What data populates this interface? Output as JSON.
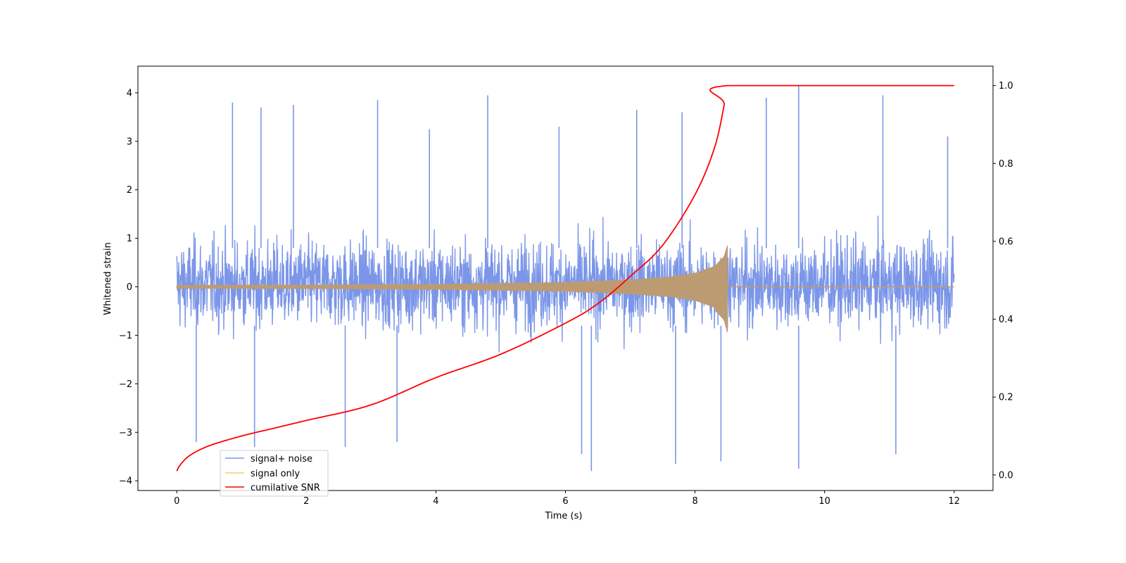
{
  "chart_data": {
    "type": "line",
    "xlabel": "Time (s)",
    "ylabel": "Whitened strain",
    "xlim": [
      -0.6,
      12.6
    ],
    "ylim": [
      -4.2,
      4.55
    ],
    "ylim_right": [
      -0.04,
      1.05
    ],
    "x_ticks": [
      0,
      2,
      4,
      6,
      8,
      10,
      12
    ],
    "y_ticks": [
      -4,
      -3,
      -2,
      -1,
      0,
      1,
      2,
      3,
      4
    ],
    "y_ticks_right": [
      0.0,
      0.2,
      0.4,
      0.6,
      0.8,
      1.0
    ],
    "grid": false,
    "legend_position": "lower-left",
    "series": [
      {
        "name": "signal+ noise",
        "color": "#7b96e8",
        "axis": "left",
        "x_range": [
          0,
          12
        ],
        "envelope_min": -3.8,
        "envelope_max": 4.15,
        "typical_range": [
          -2.0,
          2.2
        ],
        "spikes": [
          {
            "x": 0.86,
            "y": 3.8
          },
          {
            "x": 1.3,
            "y": 3.7
          },
          {
            "x": 1.8,
            "y": 3.75
          },
          {
            "x": 3.1,
            "y": 3.85
          },
          {
            "x": 3.9,
            "y": 3.25
          },
          {
            "x": 4.8,
            "y": 3.95
          },
          {
            "x": 5.9,
            "y": 3.3
          },
          {
            "x": 7.1,
            "y": 3.65
          },
          {
            "x": 7.8,
            "y": 3.6
          },
          {
            "x": 9.1,
            "y": 3.9
          },
          {
            "x": 9.6,
            "y": 4.15
          },
          {
            "x": 10.9,
            "y": 3.95
          },
          {
            "x": 11.9,
            "y": 3.1
          },
          {
            "x": 0.3,
            "y": -3.2
          },
          {
            "x": 1.2,
            "y": -3.3
          },
          {
            "x": 2.6,
            "y": -3.3
          },
          {
            "x": 3.4,
            "y": -3.2
          },
          {
            "x": 6.4,
            "y": -3.8
          },
          {
            "x": 6.25,
            "y": -3.45
          },
          {
            "x": 7.7,
            "y": -3.65
          },
          {
            "x": 8.4,
            "y": -3.6
          },
          {
            "x": 9.6,
            "y": -3.75
          },
          {
            "x": 11.1,
            "y": -3.45
          }
        ]
      },
      {
        "name": "signal only",
        "color": "#f5c87a",
        "axis": "left",
        "x_range": [
          0,
          12
        ],
        "amplitude_points": [
          [
            0,
            0.03
          ],
          [
            2,
            0.035
          ],
          [
            4,
            0.05
          ],
          [
            6,
            0.09
          ],
          [
            7,
            0.14
          ],
          [
            7.6,
            0.2
          ],
          [
            8.0,
            0.28
          ],
          [
            8.3,
            0.42
          ],
          [
            8.45,
            0.62
          ],
          [
            8.5,
            0.85
          ]
        ],
        "ends_at": 8.5
      },
      {
        "name": "cumilative SNR",
        "color": "#ff0000",
        "axis": "right",
        "points": [
          [
            0.0,
            0.01
          ],
          [
            0.05,
            0.025
          ],
          [
            0.2,
            0.05
          ],
          [
            0.5,
            0.075
          ],
          [
            1.0,
            0.1
          ],
          [
            1.5,
            0.12
          ],
          [
            2.0,
            0.14
          ],
          [
            3.0,
            0.18
          ],
          [
            4.0,
            0.25
          ],
          [
            5.0,
            0.31
          ],
          [
            6.0,
            0.39
          ],
          [
            6.5,
            0.44
          ],
          [
            7.0,
            0.51
          ],
          [
            7.5,
            0.59
          ],
          [
            8.0,
            0.72
          ],
          [
            8.3,
            0.84
          ],
          [
            8.45,
            0.95
          ],
          [
            8.5,
            1.0
          ],
          [
            12.0,
            1.0
          ]
        ]
      }
    ]
  }
}
